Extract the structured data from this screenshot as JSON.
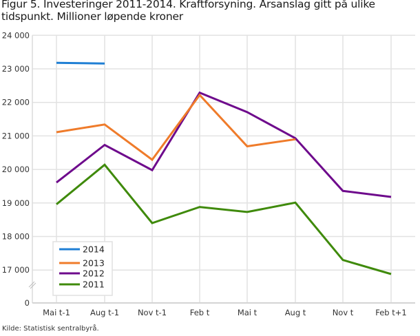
{
  "title": "Figur 5. Investeringer 2011-2014. Kraftforsyning. Årsanslag gitt på ulike tidspunkt. Millioner løpende kroner",
  "source": "Kilde: Statistisk sentralbyrå.",
  "chart_data": {
    "type": "line",
    "title": "Figur 5. Investeringer 2011-2014. Kraftforsyning. Årsanslag gitt på ulike tidspunkt. Millioner løpende kroner",
    "xlabel": "",
    "ylabel": "",
    "categories": [
      "Mai t-1",
      "Aug t-1",
      "Nov t-1",
      "Feb t",
      "Mai t",
      "Aug t",
      "Nov t",
      "Feb t+1"
    ],
    "y_ticks": [
      "0",
      "17 000",
      "18 000",
      "19 000",
      "20 000",
      "21 000",
      "22 000",
      "23 000",
      "24 000"
    ],
    "ylim": [
      0,
      24000
    ],
    "axis_break": "between 0 and 17 000",
    "grid": true,
    "legend_position": "lower-left inside plot",
    "series": [
      {
        "name": "2014",
        "color": "#1f7fd4",
        "values": [
          23180,
          23160,
          null,
          null,
          null,
          null,
          null,
          null
        ]
      },
      {
        "name": "2013",
        "color": "#ef7b2a",
        "values": [
          21110,
          21340,
          20290,
          22220,
          20690,
          20900,
          null,
          null
        ]
      },
      {
        "name": "2012",
        "color": "#6e0a8c",
        "values": [
          19610,
          20730,
          19980,
          22290,
          21710,
          20930,
          19360,
          19180
        ]
      },
      {
        "name": "2011",
        "color": "#3f8a0b",
        "values": [
          18960,
          20140,
          18400,
          18880,
          18730,
          19010,
          17300,
          16880
        ]
      }
    ]
  }
}
